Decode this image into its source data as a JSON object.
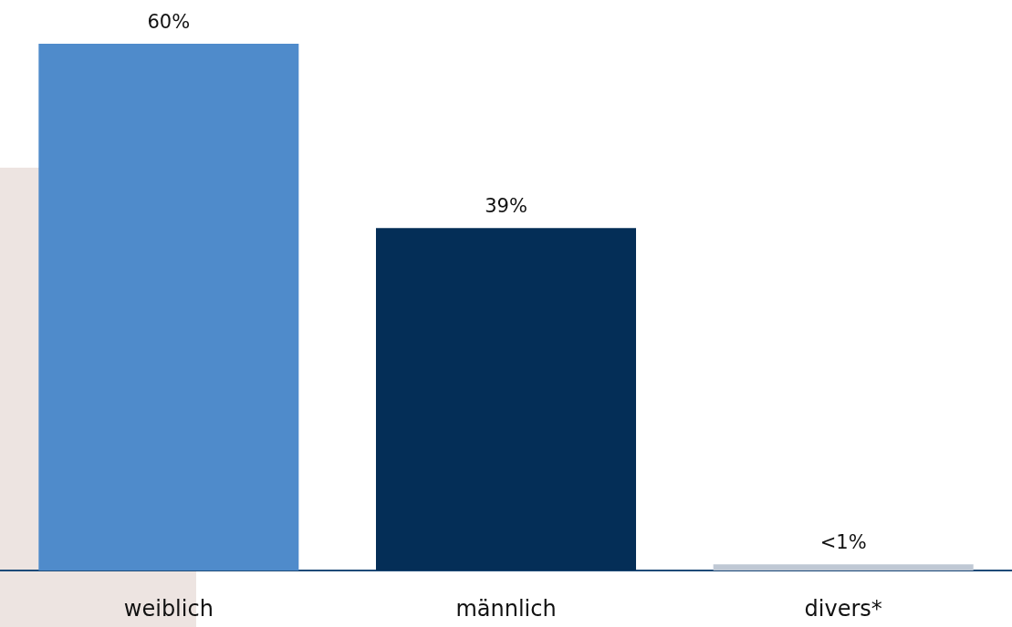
{
  "chart_data": {
    "type": "bar",
    "categories": [
      "weiblich",
      "männlich",
      "divers*"
    ],
    "values": [
      60,
      39,
      0.7
    ],
    "colors": [
      "#4f8bcb",
      "#042e57",
      "#bfc8d4"
    ],
    "value_labels": [
      "60%",
      "39%",
      "<1%"
    ]
  }
}
